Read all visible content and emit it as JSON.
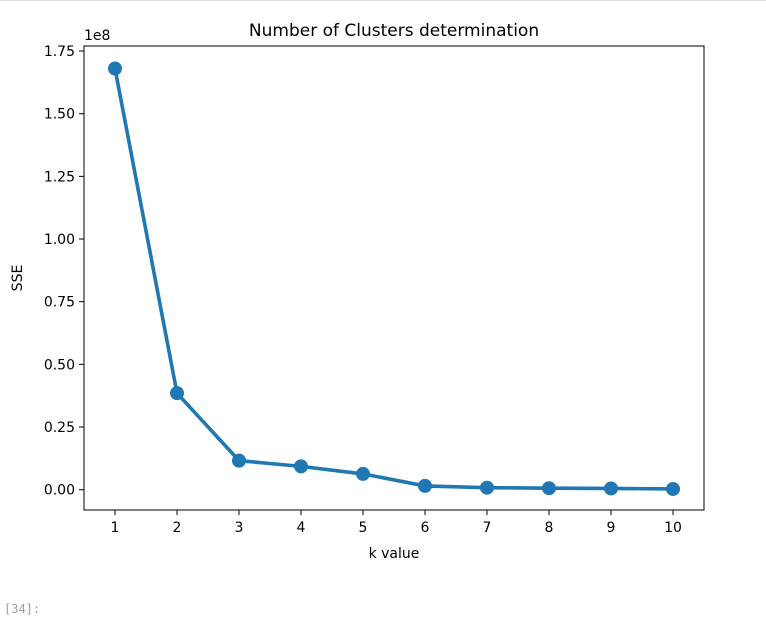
{
  "cell": {
    "prompt": "[34]:"
  },
  "chart_data": {
    "type": "line",
    "title": "Number of Clusters determination",
    "xlabel": "k value",
    "ylabel": "SSE",
    "y_offset_label": "1e8",
    "x": [
      1,
      2,
      3,
      4,
      5,
      6,
      7,
      8,
      9,
      10
    ],
    "series": [
      {
        "values": [
          1.68,
          0.385,
          0.116,
          0.093,
          0.063,
          0.015,
          0.008,
          0.006,
          0.005,
          0.003
        ]
      }
    ],
    "x_ticks": [
      "1",
      "2",
      "3",
      "4",
      "5",
      "6",
      "7",
      "8",
      "9",
      "10"
    ],
    "y_ticks": [
      0.0,
      0.25,
      0.5,
      0.75,
      1.0,
      1.25,
      1.5,
      1.75
    ],
    "y_tick_labels": [
      "0.00",
      "0.25",
      "0.50",
      "0.75",
      "1.00",
      "1.25",
      "1.50",
      "1.75"
    ],
    "xlim": [
      0.5,
      10.5
    ],
    "ylim": [
      -0.081,
      1.77
    ],
    "grid": false,
    "color": "#1f77b4",
    "marker": "circle"
  }
}
